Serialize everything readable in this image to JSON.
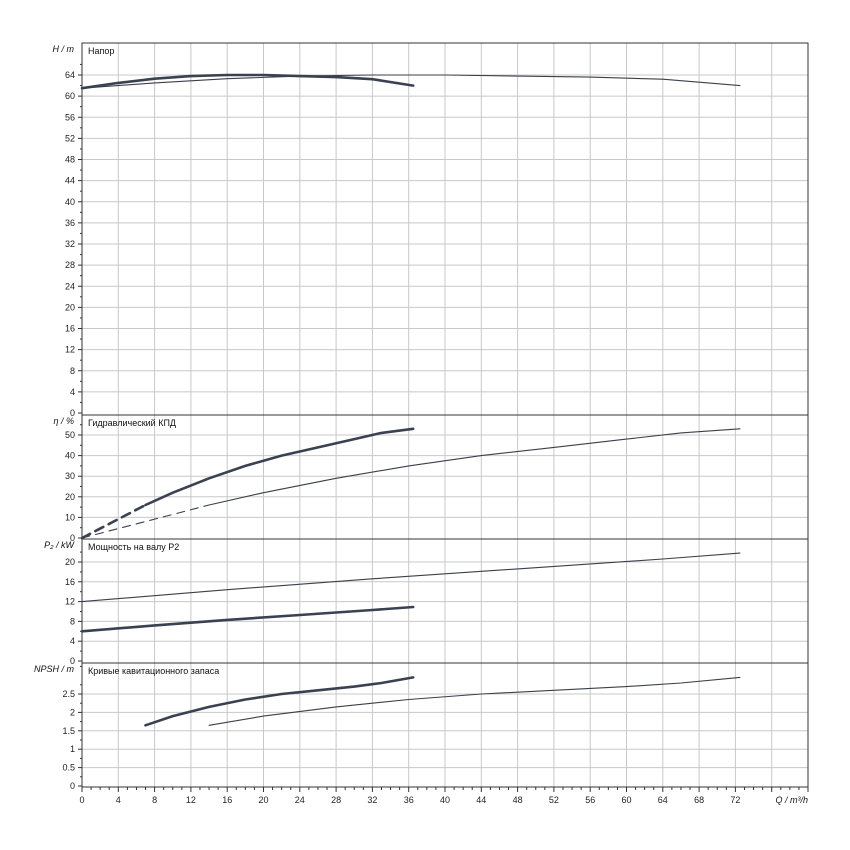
{
  "chart_data": [
    {
      "type": "line",
      "title": "Напор",
      "ylabel": "H / m",
      "ylim": [
        0,
        68
      ],
      "y_ticks": [
        "0",
        "4",
        "8",
        "12",
        "16",
        "20",
        "24",
        "28",
        "32",
        "36",
        "40",
        "44",
        "48",
        "52",
        "56",
        "60",
        "64"
      ],
      "series": [
        {
          "style": "thick",
          "x": [
            0,
            4,
            8,
            12,
            16,
            20,
            24,
            28,
            32,
            36.5
          ],
          "y": [
            61.5,
            62.5,
            63.3,
            63.8,
            64.0,
            64.0,
            63.8,
            63.6,
            63.2,
            62.0
          ]
        },
        {
          "style": "thin",
          "x": [
            0,
            8,
            16,
            24,
            32,
            40,
            48,
            56,
            64,
            72.5
          ],
          "y": [
            61.5,
            62.5,
            63.3,
            63.8,
            64.0,
            64.0,
            63.8,
            63.6,
            63.2,
            62.0
          ]
        }
      ]
    },
    {
      "type": "line",
      "title": "Гидравлический КПД",
      "ylabel": "η / %",
      "ylim": [
        0,
        58
      ],
      "y_ticks": [
        "0",
        "10",
        "20",
        "30",
        "40",
        "50"
      ],
      "series": [
        {
          "style": "thick",
          "x": [
            7,
            10,
            14,
            18,
            22,
            26,
            30,
            33,
            36.5
          ],
          "y": [
            16,
            22,
            29,
            35,
            40,
            44,
            48,
            51,
            53
          ]
        },
        {
          "style": "thick-dashed",
          "x": [
            0,
            7
          ],
          "y": [
            0,
            16
          ]
        },
        {
          "style": "thin",
          "x": [
            14,
            20,
            28,
            36,
            44,
            52,
            60,
            66,
            72.5
          ],
          "y": [
            16,
            22,
            29,
            35,
            40,
            44,
            48,
            51,
            53
          ]
        },
        {
          "style": "thin-dashed",
          "x": [
            0,
            14
          ],
          "y": [
            0,
            16
          ]
        }
      ]
    },
    {
      "type": "line",
      "title": "Мощность на валу P2",
      "ylabel": "P₂ / kW",
      "ylim": [
        0,
        23
      ],
      "y_ticks": [
        "0",
        "4",
        "8",
        "12",
        "16",
        "20"
      ],
      "series": [
        {
          "style": "thick",
          "x": [
            0,
            8,
            16,
            24,
            32,
            36.5
          ],
          "y": [
            6.0,
            7.2,
            8.3,
            9.3,
            10.3,
            10.9
          ]
        },
        {
          "style": "thin",
          "x": [
            0,
            16,
            32,
            48,
            64,
            72.5
          ],
          "y": [
            12.0,
            14.4,
            16.6,
            18.6,
            20.6,
            21.8
          ]
        }
      ]
    },
    {
      "type": "line",
      "title": "Кривые кавитационного запаса",
      "ylabel": "NPSH / m",
      "ylim": [
        0,
        3.1
      ],
      "y_ticks": [
        "0",
        "0.5",
        "1",
        "1.5",
        "2",
        "2.5"
      ],
      "series": [
        {
          "style": "thick",
          "x": [
            7,
            10,
            14,
            18,
            22,
            26,
            30,
            33,
            36.5
          ],
          "y": [
            1.65,
            1.9,
            2.15,
            2.35,
            2.5,
            2.6,
            2.7,
            2.8,
            2.95
          ]
        },
        {
          "style": "thin",
          "x": [
            14,
            20,
            28,
            36,
            44,
            52,
            60,
            66,
            72.5
          ],
          "y": [
            1.65,
            1.9,
            2.15,
            2.35,
            2.5,
            2.6,
            2.7,
            2.8,
            2.95
          ]
        }
      ]
    }
  ],
  "x_axis": {
    "label": "Q / m³/h",
    "xlim": [
      0,
      80
    ],
    "ticks": [
      "0",
      "4",
      "8",
      "12",
      "16",
      "20",
      "24",
      "28",
      "32",
      "36",
      "40",
      "44",
      "48",
      "52",
      "56",
      "60",
      "64",
      "68",
      "72"
    ]
  }
}
